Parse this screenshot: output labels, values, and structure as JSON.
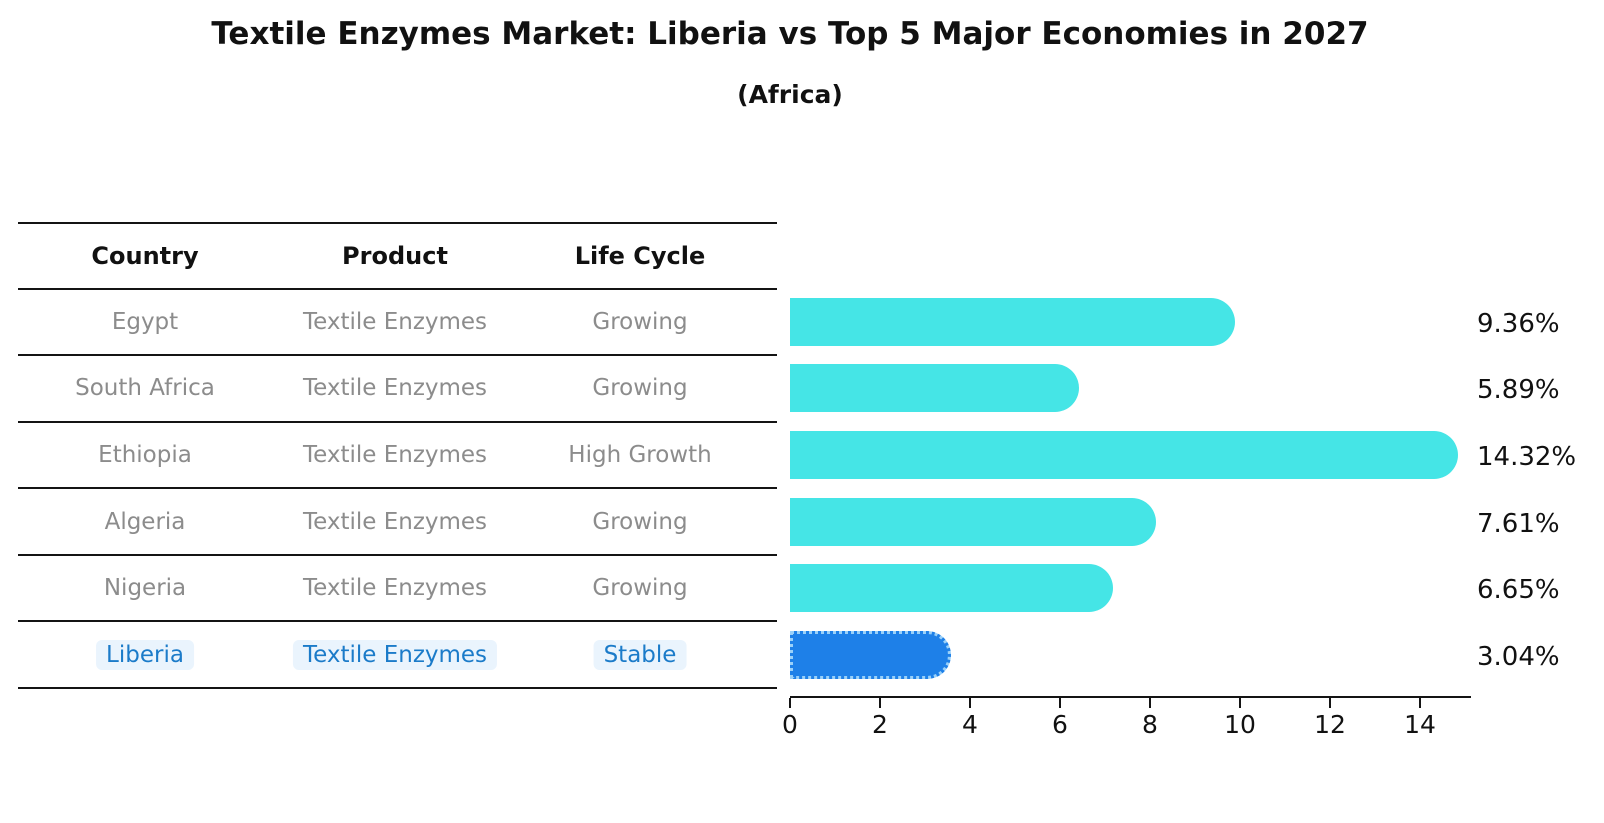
{
  "header": {
    "title": "Textile Enzymes Market: Liberia vs Top 5 Major Economies in 2027",
    "subtitle": "(Africa)"
  },
  "table": {
    "columns": [
      "Country",
      "Product",
      "Life Cycle"
    ],
    "rows": [
      {
        "country": "Egypt",
        "product": "Textile Enzymes",
        "life_cycle": "Growing",
        "highlight": false
      },
      {
        "country": "South Africa",
        "product": "Textile Enzymes",
        "life_cycle": "Growing",
        "highlight": false
      },
      {
        "country": "Ethiopia",
        "product": "Textile Enzymes",
        "life_cycle": "High Growth",
        "highlight": false
      },
      {
        "country": "Algeria",
        "product": "Textile Enzymes",
        "life_cycle": "Growing",
        "highlight": false
      },
      {
        "country": "Nigeria",
        "product": "Textile Enzymes",
        "life_cycle": "Growing",
        "highlight": false
      },
      {
        "country": "Liberia",
        "product": "Textile Enzymes",
        "life_cycle": "Stable",
        "highlight": true
      }
    ]
  },
  "chart_data": {
    "type": "bar",
    "orientation": "horizontal",
    "title": "Textile Enzymes Market: Liberia vs Top 5 Major Economies in 2027",
    "subtitle": "(Africa)",
    "categories": [
      "Egypt",
      "South Africa",
      "Ethiopia",
      "Algeria",
      "Nigeria",
      "Liberia"
    ],
    "values": [
      9.36,
      5.89,
      14.32,
      7.61,
      6.65,
      3.04
    ],
    "value_labels": [
      "9.36%",
      "5.89%",
      "14.32%",
      "7.61%",
      "6.65%",
      "3.04%"
    ],
    "x_ticks": [
      0,
      2,
      4,
      6,
      8,
      10,
      12,
      14
    ],
    "xlim": [
      0,
      15.2
    ],
    "grid": false,
    "legend": "none",
    "highlight_index": 5,
    "bar_color_default": "#45e5e6",
    "bar_color_highlight": "#1e80e8",
    "highlight_border_color": "#9bd1f9",
    "highlight_text_color": "#1b7bc9",
    "table_text_color": "#8c8c8c",
    "axis_text_color": "#111111"
  }
}
